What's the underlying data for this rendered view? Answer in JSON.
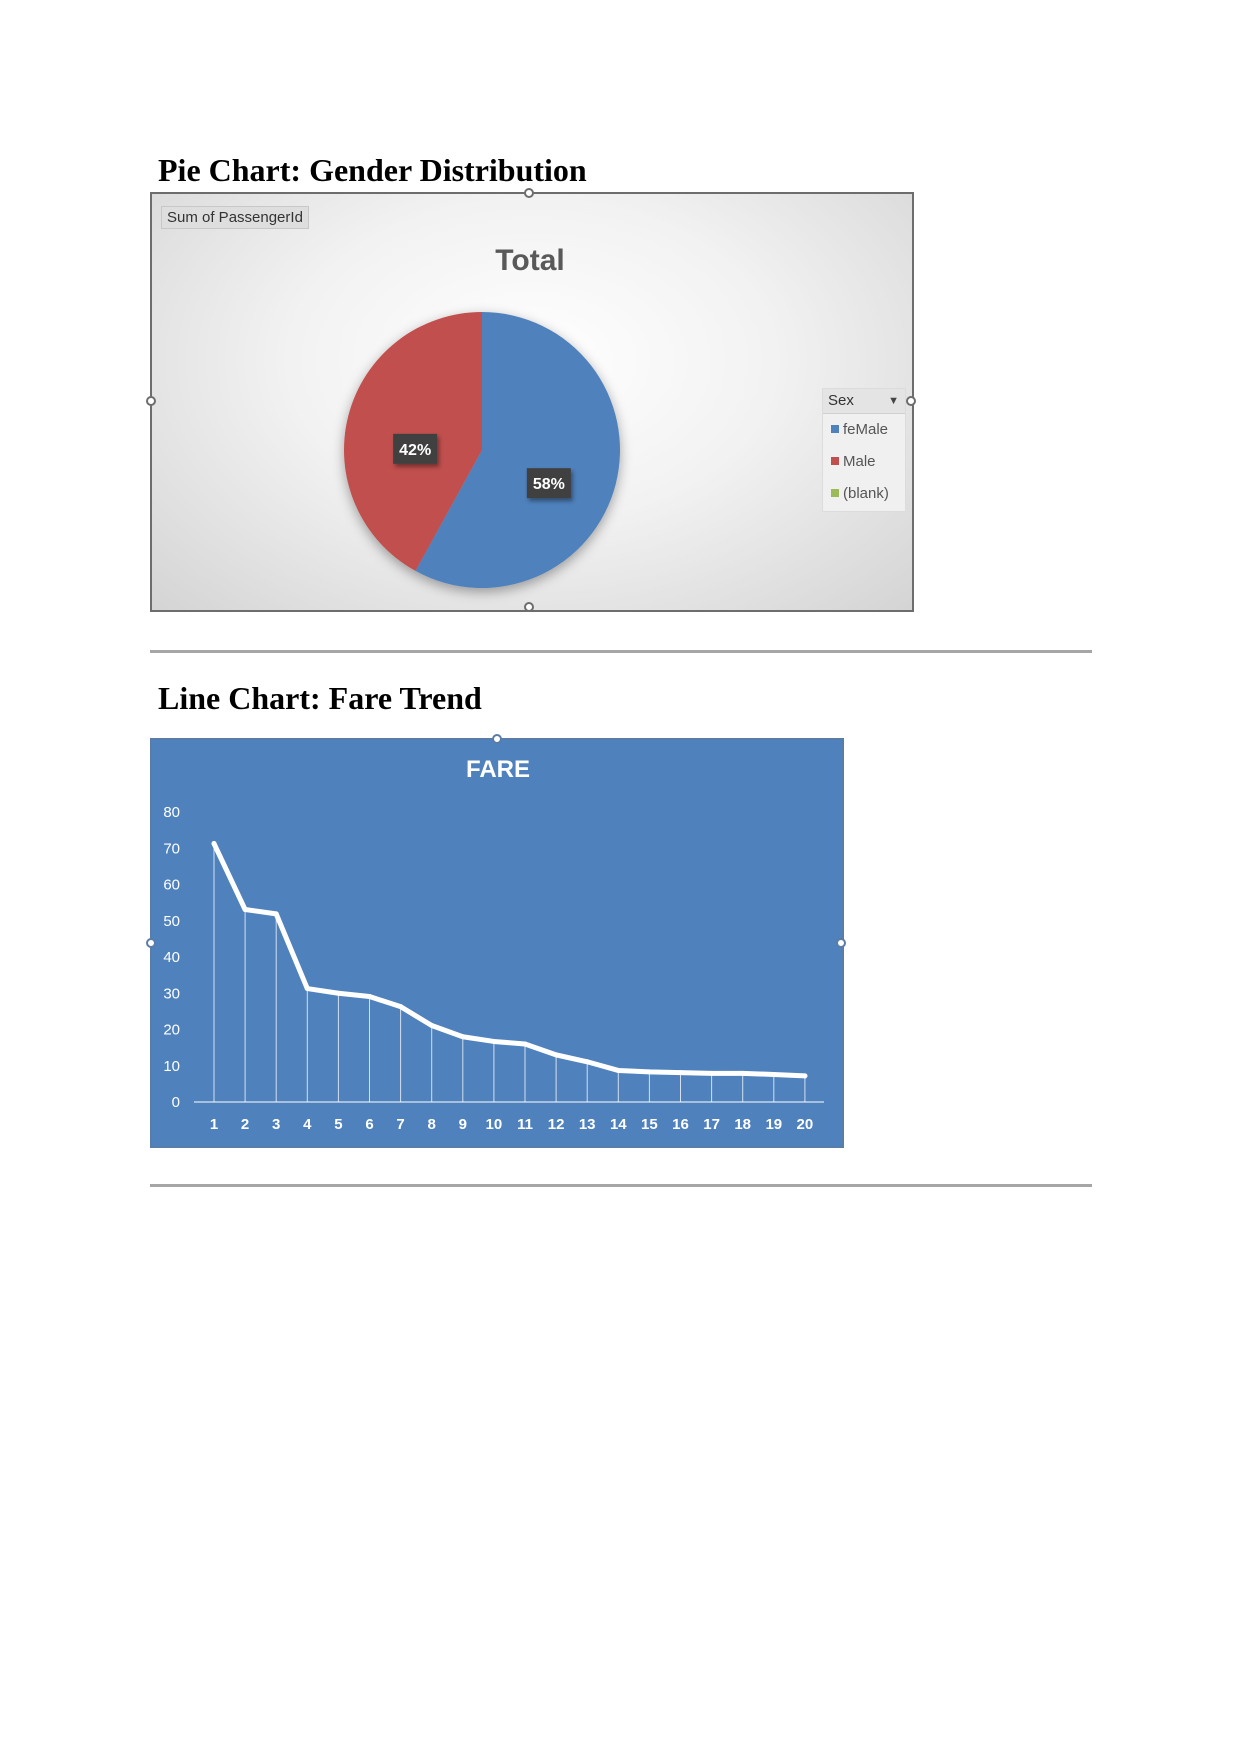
{
  "headings": {
    "pie": "Pie Chart: Gender Distribution",
    "line": "Line Chart: Fare Trend"
  },
  "pie_chart": {
    "field_button": "Sum of PassengerId",
    "legend_header": "Sex",
    "legend_items": [
      {
        "label": "feMale",
        "color": "#4f81bd"
      },
      {
        "label": "Male",
        "color": "#c0504d"
      },
      {
        "label": "(blank)",
        "color": "#9bbb59"
      }
    ]
  },
  "chart_data": [
    {
      "type": "pie",
      "title": "Total",
      "slices": [
        {
          "label": "feMale",
          "value": 58,
          "display": "58%",
          "color": "#4f81bd"
        },
        {
          "label": "Male",
          "value": 42,
          "display": "42%",
          "color": "#c0504d"
        }
      ],
      "legend": "right"
    },
    {
      "type": "line",
      "title": "FARE",
      "x": [
        1,
        2,
        3,
        4,
        5,
        6,
        7,
        8,
        9,
        10,
        11,
        12,
        13,
        14,
        15,
        16,
        17,
        18,
        19,
        20
      ],
      "series": [
        {
          "values": [
            71.3,
            53.1,
            51.9,
            31.3,
            30.0,
            29.1,
            26.3,
            21.1,
            18.0,
            16.7,
            16.0,
            13.0,
            11.1,
            8.7,
            8.3,
            8.1,
            7.9,
            7.9,
            7.6,
            7.2
          ],
          "color": "#ffffff"
        }
      ],
      "yticks": [
        0,
        10,
        20,
        30,
        40,
        50,
        60,
        70,
        80
      ],
      "ylim": [
        0,
        80
      ],
      "grid": false,
      "drop_lines": true
    }
  ]
}
